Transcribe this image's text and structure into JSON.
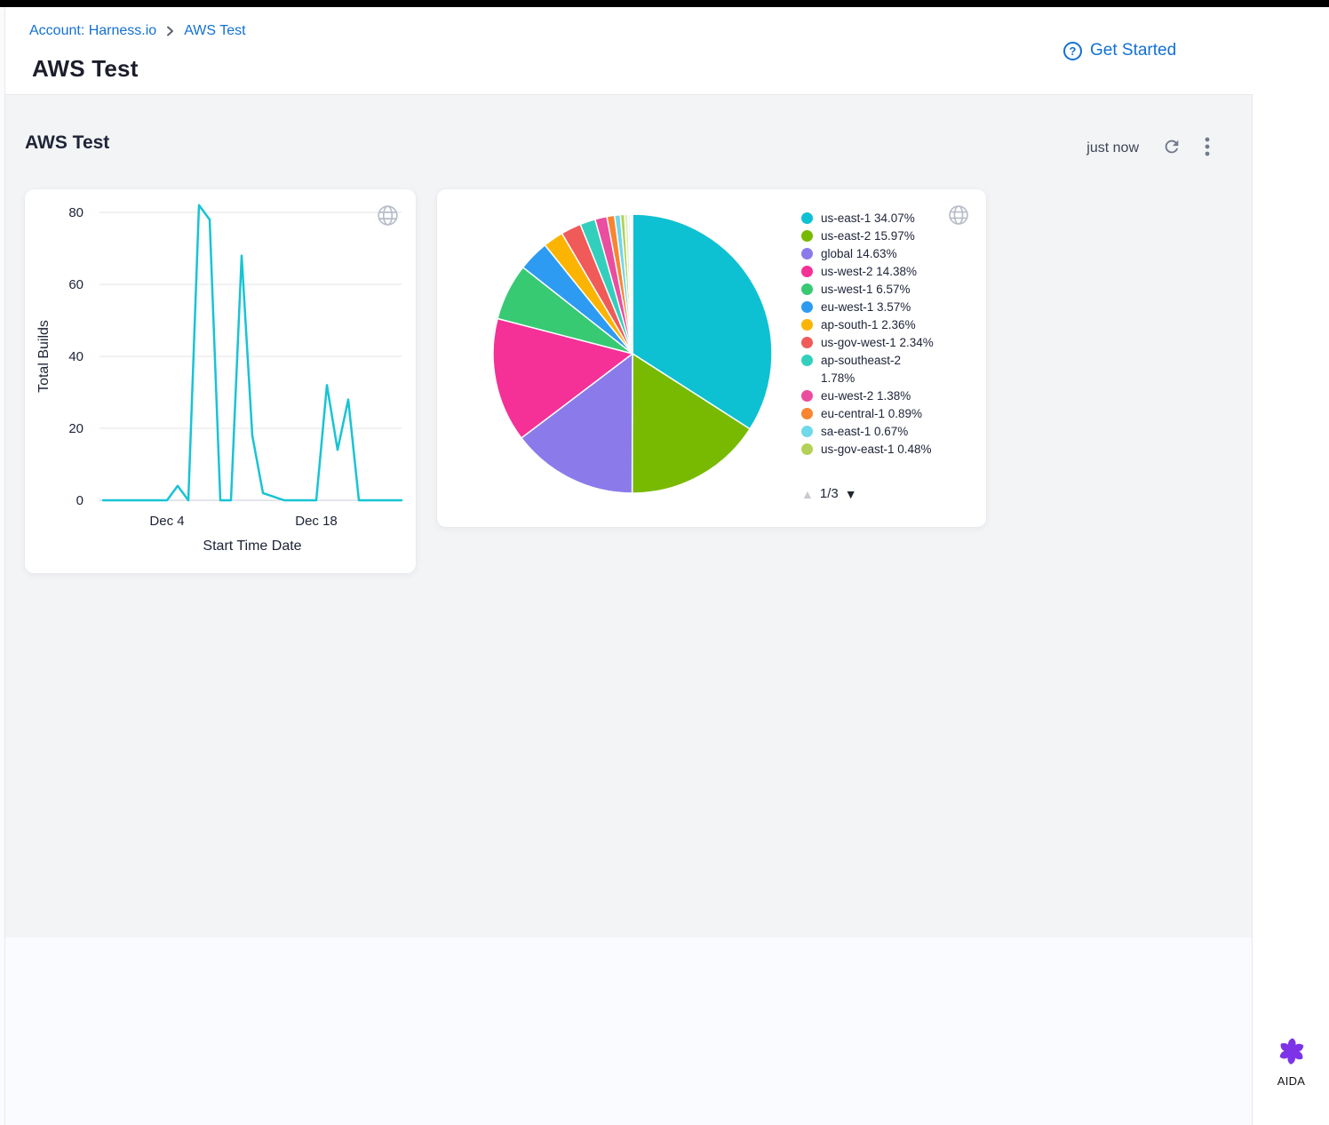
{
  "breadcrumb": {
    "account": "Account: Harness.io",
    "current": "AWS Test"
  },
  "header": {
    "title": "AWS Test",
    "get_started": "Get Started"
  },
  "dashboard": {
    "title": "AWS Test",
    "last_refresh": "just now",
    "pagination": {
      "up": "▲",
      "label": "1/3",
      "down": "▼"
    }
  },
  "aida": {
    "label": "AIDA"
  },
  "icons": {
    "help": "question-circle",
    "refresh": "refresh",
    "menu": "kebab-vertical",
    "globe": "globe",
    "page_up": "triangle-up",
    "page_down": "triangle-down",
    "logo": "aida-flower"
  },
  "colors": {
    "accent_blue": "#1270d4",
    "line_series": "#17c4d4",
    "content_bg": "#f3f4f6",
    "text_dark": "#1f2437",
    "icon_gray": "#717a8c",
    "globe_gray": "#b7bdc8"
  },
  "chart_data": [
    {
      "type": "line",
      "title": "",
      "ylabel": "Total Builds",
      "xlabel": "Start Time Date",
      "y_ticks": [
        0,
        20,
        40,
        60,
        80
      ],
      "ylim": [
        0,
        82
      ],
      "grid": "horizontal",
      "legend": "none",
      "x_ticks": [
        {
          "label": "Dec 4",
          "index": 6
        },
        {
          "label": "Dec 18",
          "index": 20
        }
      ],
      "values": [
        0,
        0,
        0,
        0,
        0,
        0,
        0,
        4,
        0,
        82,
        78,
        0,
        0,
        68,
        18,
        2,
        1,
        0,
        0,
        0,
        0,
        32,
        14,
        28,
        0,
        0,
        0,
        0,
        0
      ],
      "line_color": "#17c4d4"
    },
    {
      "type": "pie",
      "title": "",
      "legend_position": "right",
      "start_angle_deg": -90,
      "slices": [
        {
          "label": "us-east-1",
          "pct": 34.07,
          "percent_label": "34.07%",
          "color": "#0ec1d2"
        },
        {
          "label": "us-east-2",
          "pct": 15.97,
          "percent_label": "15.97%",
          "color": "#78ba01"
        },
        {
          "label": "global",
          "pct": 14.63,
          "percent_label": "14.63%",
          "color": "#8b7bea"
        },
        {
          "label": "us-west-2",
          "pct": 14.38,
          "percent_label": "14.38%",
          "color": "#f53096"
        },
        {
          "label": "us-west-1",
          "pct": 6.57,
          "percent_label": "6.57%",
          "color": "#38c973"
        },
        {
          "label": "eu-west-1",
          "pct": 3.57,
          "percent_label": "3.57%",
          "color": "#2e9bf2"
        },
        {
          "label": "ap-south-1",
          "pct": 2.36,
          "percent_label": "2.36%",
          "color": "#fcb402"
        },
        {
          "label": "us-gov-west-1",
          "pct": 2.34,
          "percent_label": "2.34%",
          "color": "#f05a58"
        },
        {
          "label": "ap-southeast-2",
          "pct": 1.78,
          "percent_label": "1.78%",
          "color": "#33cfbd"
        },
        {
          "label": "eu-west-2",
          "pct": 1.38,
          "percent_label": "1.38%",
          "color": "#eb4d9f"
        },
        {
          "label": "eu-central-1",
          "pct": 0.89,
          "percent_label": "0.89%",
          "color": "#f98431"
        },
        {
          "label": "sa-east-1",
          "pct": 0.67,
          "percent_label": "0.67%",
          "color": "#6fd8e9"
        },
        {
          "label": "us-gov-east-1",
          "pct": 0.48,
          "percent_label": "0.48%",
          "color": "#b3d156"
        }
      ],
      "remainder_slivers": [
        {
          "pct": 0.38,
          "color": "#dcedb9"
        },
        {
          "pct": 0.3,
          "color": "#e9f5fa"
        },
        {
          "pct": 0.23,
          "color": "#f6f9ef"
        }
      ],
      "legend_pagination": "1/3"
    }
  ]
}
